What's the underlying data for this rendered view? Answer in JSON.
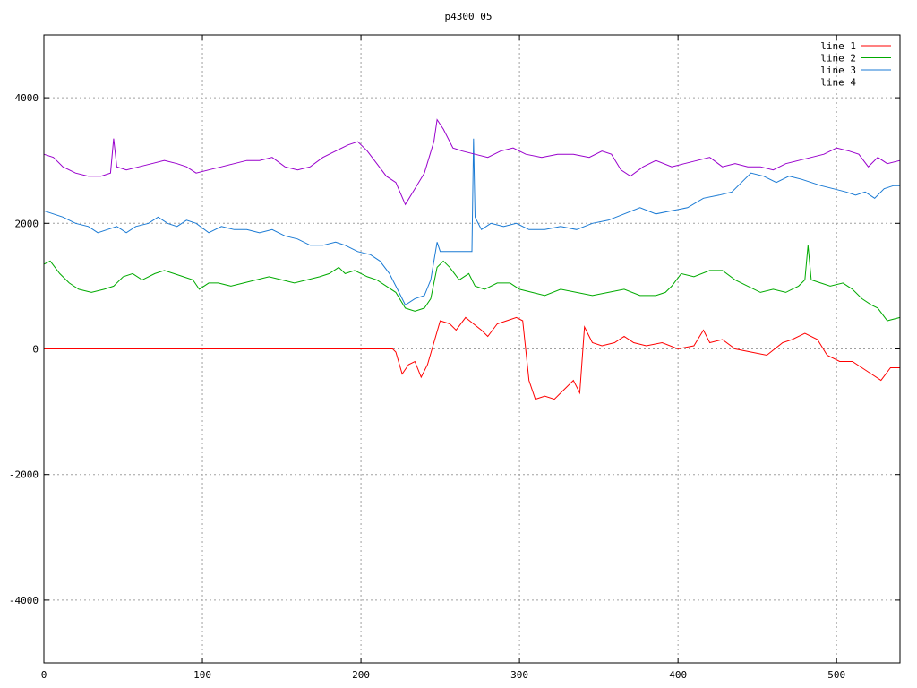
{
  "chart_data": {
    "type": "line",
    "title": "p4300_05",
    "xlabel": "",
    "ylabel": "",
    "xlim": [
      0,
      540
    ],
    "ylim": [
      -5000,
      5000
    ],
    "grid": true,
    "legend_position": "top-right",
    "x_ticks": [
      0,
      100,
      200,
      300,
      400,
      500
    ],
    "y_ticks": [
      -4000,
      -2000,
      0,
      2000,
      4000
    ],
    "x_tick_labels": [
      "0",
      "100",
      "200",
      "300",
      "400",
      "500"
    ],
    "y_tick_labels": [
      "-4000",
      "-2000",
      "0",
      "2000",
      "4000"
    ],
    "series": [
      {
        "name": "line 1",
        "color": "#ff0000",
        "points": [
          [
            0,
            0
          ],
          [
            100,
            0
          ],
          [
            200,
            0
          ],
          [
            220,
            0
          ],
          [
            222,
            -50
          ],
          [
            226,
            -400
          ],
          [
            230,
            -250
          ],
          [
            234,
            -200
          ],
          [
            238,
            -450
          ],
          [
            242,
            -250
          ],
          [
            246,
            100
          ],
          [
            250,
            450
          ],
          [
            256,
            400
          ],
          [
            260,
            300
          ],
          [
            266,
            500
          ],
          [
            270,
            420
          ],
          [
            276,
            300
          ],
          [
            280,
            200
          ],
          [
            286,
            400
          ],
          [
            292,
            450
          ],
          [
            298,
            500
          ],
          [
            302,
            450
          ],
          [
            306,
            -500
          ],
          [
            310,
            -800
          ],
          [
            316,
            -750
          ],
          [
            322,
            -800
          ],
          [
            326,
            -700
          ],
          [
            330,
            -600
          ],
          [
            334,
            -500
          ],
          [
            338,
            -700
          ],
          [
            341,
            350
          ],
          [
            346,
            100
          ],
          [
            352,
            50
          ],
          [
            360,
            100
          ],
          [
            366,
            200
          ],
          [
            372,
            100
          ],
          [
            380,
            50
          ],
          [
            390,
            100
          ],
          [
            400,
            0
          ],
          [
            410,
            50
          ],
          [
            416,
            300
          ],
          [
            420,
            100
          ],
          [
            428,
            150
          ],
          [
            436,
            0
          ],
          [
            446,
            -50
          ],
          [
            456,
            -100
          ],
          [
            466,
            100
          ],
          [
            472,
            150
          ],
          [
            480,
            250
          ],
          [
            488,
            150
          ],
          [
            494,
            -100
          ],
          [
            502,
            -200
          ],
          [
            510,
            -200
          ],
          [
            516,
            -300
          ],
          [
            522,
            -400
          ],
          [
            528,
            -500
          ],
          [
            534,
            -300
          ],
          [
            540,
            -300
          ]
        ]
      },
      {
        "name": "line 2",
        "color": "#00aa00",
        "points": [
          [
            0,
            1350
          ],
          [
            4,
            1400
          ],
          [
            10,
            1200
          ],
          [
            16,
            1050
          ],
          [
            22,
            950
          ],
          [
            30,
            900
          ],
          [
            38,
            950
          ],
          [
            44,
            1000
          ],
          [
            50,
            1150
          ],
          [
            56,
            1200
          ],
          [
            62,
            1100
          ],
          [
            70,
            1200
          ],
          [
            76,
            1250
          ],
          [
            82,
            1200
          ],
          [
            88,
            1150
          ],
          [
            94,
            1100
          ],
          [
            98,
            950
          ],
          [
            104,
            1050
          ],
          [
            110,
            1050
          ],
          [
            118,
            1000
          ],
          [
            126,
            1050
          ],
          [
            134,
            1100
          ],
          [
            142,
            1150
          ],
          [
            150,
            1100
          ],
          [
            158,
            1050
          ],
          [
            166,
            1100
          ],
          [
            174,
            1150
          ],
          [
            180,
            1200
          ],
          [
            186,
            1300
          ],
          [
            190,
            1200
          ],
          [
            196,
            1250
          ],
          [
            204,
            1150
          ],
          [
            210,
            1100
          ],
          [
            216,
            1000
          ],
          [
            222,
            900
          ],
          [
            228,
            650
          ],
          [
            234,
            600
          ],
          [
            240,
            650
          ],
          [
            244,
            800
          ],
          [
            248,
            1300
          ],
          [
            252,
            1400
          ],
          [
            256,
            1300
          ],
          [
            262,
            1100
          ],
          [
            268,
            1200
          ],
          [
            272,
            1000
          ],
          [
            278,
            950
          ],
          [
            286,
            1050
          ],
          [
            294,
            1050
          ],
          [
            300,
            950
          ],
          [
            308,
            900
          ],
          [
            316,
            850
          ],
          [
            326,
            950
          ],
          [
            336,
            900
          ],
          [
            346,
            850
          ],
          [
            356,
            900
          ],
          [
            366,
            950
          ],
          [
            376,
            850
          ],
          [
            386,
            850
          ],
          [
            392,
            900
          ],
          [
            396,
            1000
          ],
          [
            402,
            1200
          ],
          [
            410,
            1150
          ],
          [
            420,
            1250
          ],
          [
            428,
            1250
          ],
          [
            436,
            1100
          ],
          [
            444,
            1000
          ],
          [
            452,
            900
          ],
          [
            460,
            950
          ],
          [
            468,
            900
          ],
          [
            476,
            1000
          ],
          [
            480,
            1100
          ],
          [
            482,
            1650
          ],
          [
            484,
            1100
          ],
          [
            490,
            1050
          ],
          [
            496,
            1000
          ],
          [
            504,
            1050
          ],
          [
            510,
            950
          ],
          [
            516,
            800
          ],
          [
            522,
            700
          ],
          [
            526,
            650
          ],
          [
            532,
            450
          ],
          [
            540,
            500
          ]
        ]
      },
      {
        "name": "line 3",
        "color": "#1a7ad4",
        "points": [
          [
            0,
            2200
          ],
          [
            6,
            2150
          ],
          [
            12,
            2100
          ],
          [
            20,
            2000
          ],
          [
            28,
            1950
          ],
          [
            34,
            1850
          ],
          [
            40,
            1900
          ],
          [
            46,
            1950
          ],
          [
            52,
            1850
          ],
          [
            58,
            1950
          ],
          [
            66,
            2000
          ],
          [
            72,
            2100
          ],
          [
            78,
            2000
          ],
          [
            84,
            1950
          ],
          [
            90,
            2050
          ],
          [
            96,
            2000
          ],
          [
            104,
            1850
          ],
          [
            112,
            1950
          ],
          [
            120,
            1900
          ],
          [
            128,
            1900
          ],
          [
            136,
            1850
          ],
          [
            144,
            1900
          ],
          [
            152,
            1800
          ],
          [
            160,
            1750
          ],
          [
            168,
            1650
          ],
          [
            176,
            1650
          ],
          [
            184,
            1700
          ],
          [
            190,
            1650
          ],
          [
            198,
            1550
          ],
          [
            206,
            1500
          ],
          [
            212,
            1400
          ],
          [
            218,
            1200
          ],
          [
            224,
            900
          ],
          [
            228,
            700
          ],
          [
            234,
            800
          ],
          [
            240,
            850
          ],
          [
            244,
            1100
          ],
          [
            248,
            1700
          ],
          [
            250,
            1550
          ],
          [
            254,
            1550
          ],
          [
            260,
            1550
          ],
          [
            266,
            1550
          ],
          [
            270,
            1550
          ],
          [
            271,
            3350
          ],
          [
            272,
            2100
          ],
          [
            276,
            1900
          ],
          [
            282,
            2000
          ],
          [
            290,
            1950
          ],
          [
            298,
            2000
          ],
          [
            306,
            1900
          ],
          [
            316,
            1900
          ],
          [
            326,
            1950
          ],
          [
            336,
            1900
          ],
          [
            346,
            2000
          ],
          [
            356,
            2050
          ],
          [
            366,
            2150
          ],
          [
            376,
            2250
          ],
          [
            386,
            2150
          ],
          [
            396,
            2200
          ],
          [
            406,
            2250
          ],
          [
            416,
            2400
          ],
          [
            426,
            2450
          ],
          [
            434,
            2500
          ],
          [
            440,
            2650
          ],
          [
            446,
            2800
          ],
          [
            454,
            2750
          ],
          [
            462,
            2650
          ],
          [
            470,
            2750
          ],
          [
            478,
            2700
          ],
          [
            484,
            2650
          ],
          [
            490,
            2600
          ],
          [
            498,
            2550
          ],
          [
            506,
            2500
          ],
          [
            512,
            2450
          ],
          [
            518,
            2500
          ],
          [
            524,
            2400
          ],
          [
            530,
            2550
          ],
          [
            536,
            2600
          ],
          [
            540,
            2600
          ]
        ]
      },
      {
        "name": "line 4",
        "color": "#9900cc",
        "points": [
          [
            0,
            3100
          ],
          [
            6,
            3050
          ],
          [
            12,
            2900
          ],
          [
            20,
            2800
          ],
          [
            28,
            2750
          ],
          [
            36,
            2750
          ],
          [
            42,
            2800
          ],
          [
            44,
            3350
          ],
          [
            46,
            2900
          ],
          [
            52,
            2850
          ],
          [
            60,
            2900
          ],
          [
            68,
            2950
          ],
          [
            76,
            3000
          ],
          [
            84,
            2950
          ],
          [
            90,
            2900
          ],
          [
            96,
            2800
          ],
          [
            104,
            2850
          ],
          [
            112,
            2900
          ],
          [
            120,
            2950
          ],
          [
            128,
            3000
          ],
          [
            136,
            3000
          ],
          [
            144,
            3050
          ],
          [
            152,
            2900
          ],
          [
            160,
            2850
          ],
          [
            168,
            2900
          ],
          [
            176,
            3050
          ],
          [
            184,
            3150
          ],
          [
            192,
            3250
          ],
          [
            198,
            3300
          ],
          [
            204,
            3150
          ],
          [
            210,
            2950
          ],
          [
            216,
            2750
          ],
          [
            222,
            2650
          ],
          [
            228,
            2300
          ],
          [
            234,
            2550
          ],
          [
            240,
            2800
          ],
          [
            246,
            3300
          ],
          [
            248,
            3650
          ],
          [
            252,
            3500
          ],
          [
            258,
            3200
          ],
          [
            264,
            3150
          ],
          [
            272,
            3100
          ],
          [
            280,
            3050
          ],
          [
            288,
            3150
          ],
          [
            296,
            3200
          ],
          [
            304,
            3100
          ],
          [
            314,
            3050
          ],
          [
            324,
            3100
          ],
          [
            334,
            3100
          ],
          [
            344,
            3050
          ],
          [
            352,
            3150
          ],
          [
            358,
            3100
          ],
          [
            364,
            2850
          ],
          [
            370,
            2750
          ],
          [
            378,
            2900
          ],
          [
            386,
            3000
          ],
          [
            396,
            2900
          ],
          [
            404,
            2950
          ],
          [
            412,
            3000
          ],
          [
            420,
            3050
          ],
          [
            428,
            2900
          ],
          [
            436,
            2950
          ],
          [
            444,
            2900
          ],
          [
            452,
            2900
          ],
          [
            460,
            2850
          ],
          [
            468,
            2950
          ],
          [
            476,
            3000
          ],
          [
            484,
            3050
          ],
          [
            492,
            3100
          ],
          [
            500,
            3200
          ],
          [
            508,
            3150
          ],
          [
            514,
            3100
          ],
          [
            520,
            2900
          ],
          [
            526,
            3050
          ],
          [
            532,
            2950
          ],
          [
            540,
            3000
          ]
        ]
      }
    ]
  }
}
